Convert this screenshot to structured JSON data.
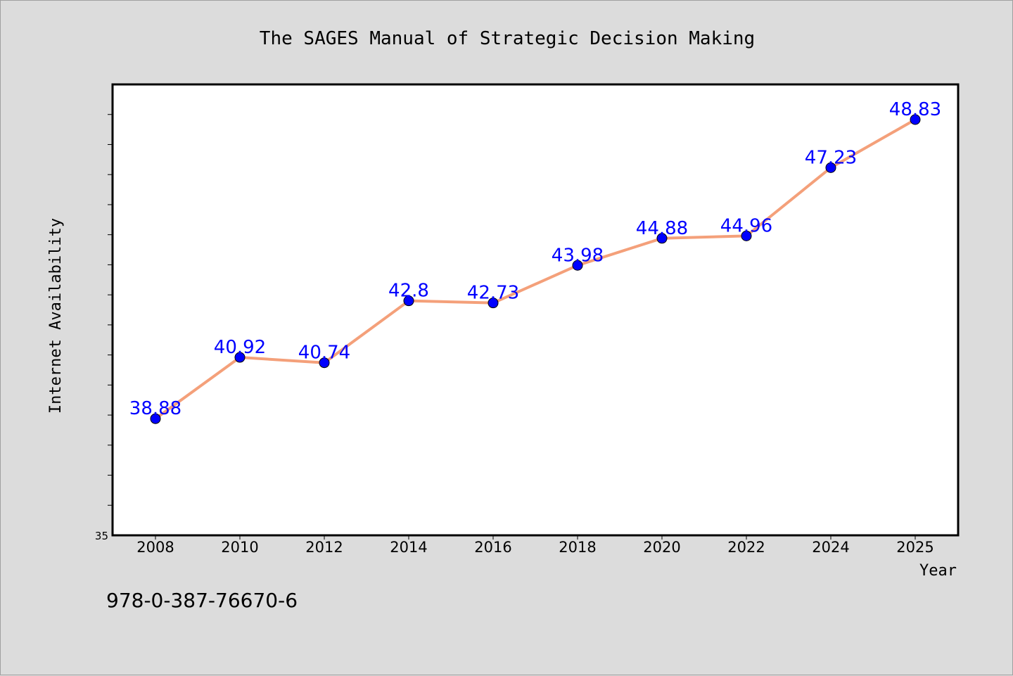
{
  "chart_data": {
    "type": "line",
    "title": "The SAGES Manual of Strategic Decision Making",
    "xlabel": "Year",
    "ylabel": "Internet Availability",
    "categories": [
      "2008",
      "2010",
      "2012",
      "2014",
      "2016",
      "2018",
      "2020",
      "2022",
      "2024",
      "2025"
    ],
    "series": [
      {
        "values": [
          38.88,
          40.92,
          40.74,
          42.8,
          42.73,
          43.98,
          44.88,
          44.96,
          47.23,
          48.83
        ]
      }
    ],
    "y_axis_min_label": "35",
    "ylim": [
      35,
      50
    ],
    "grid": false,
    "line_color": "#f4a07a",
    "marker_color": "#0000ff",
    "label_color": "#0000ff",
    "plot_background": "#ffffff",
    "page_background": "#dcdcdc"
  },
  "footer": {
    "isbn": "978-0-387-76670-6"
  }
}
